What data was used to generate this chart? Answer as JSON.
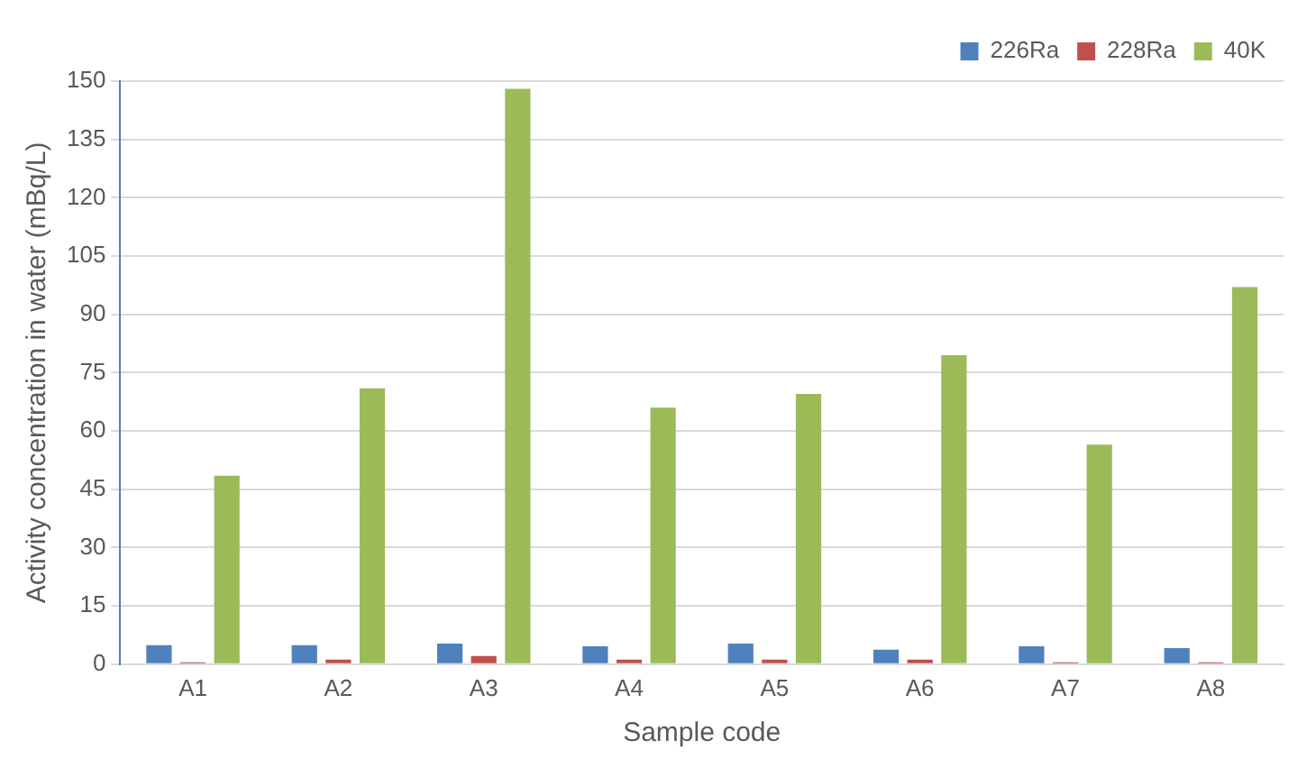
{
  "chart_data": {
    "type": "bar",
    "xlabel": "Sample code",
    "ylabel": "Activity concentration in water (mBq/L)",
    "categories": [
      "A1",
      "A2",
      "A3",
      "A4",
      "A5",
      "A6",
      "A7",
      "A8"
    ],
    "series": [
      {
        "name": "226Ra",
        "color": "#4f81bd",
        "values": [
          4.9,
          4.9,
          5.3,
          4.6,
          5.3,
          3.7,
          4.6,
          4.1
        ]
      },
      {
        "name": "228Ra",
        "color": "#c0504d",
        "values": [
          0.5,
          1.2,
          2.1,
          1.2,
          1.2,
          1.2,
          0.5,
          0.5
        ]
      },
      {
        "name": "40K",
        "color": "#9bbb59",
        "values": [
          48.5,
          71,
          148,
          66,
          69.5,
          79.5,
          56.5,
          97
        ]
      }
    ],
    "ylim": [
      0,
      150
    ],
    "yticks": [
      0,
      15,
      30,
      45,
      60,
      75,
      90,
      105,
      120,
      135,
      150
    ],
    "grid": "y",
    "legend": "top right"
  }
}
